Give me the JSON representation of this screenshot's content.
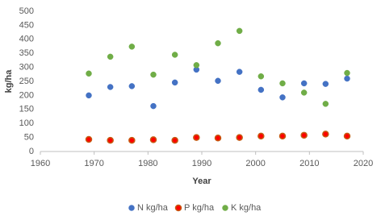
{
  "chart_data": {
    "type": "scatter",
    "xlabel": "Year",
    "ylabel": "kg/ha",
    "xlim": [
      1960,
      2020
    ],
    "xticks": [
      1960,
      1970,
      1980,
      1990,
      2000,
      2010,
      2020
    ],
    "ylim": [
      0,
      500
    ],
    "yticks": [
      0,
      50,
      100,
      150,
      200,
      250,
      300,
      350,
      400,
      450,
      500
    ],
    "grid": false,
    "legend": "bottom",
    "x": [
      1969,
      1973,
      1977,
      1981,
      1985,
      1989,
      1993,
      1997,
      2001,
      2005,
      2009,
      2013,
      2017
    ],
    "series": [
      {
        "name": "N kg/ha",
        "color": "#4472c4",
        "values": [
          200,
          230,
          233,
          162,
          246,
          292,
          252,
          284,
          220,
          193,
          243,
          241,
          260
        ]
      },
      {
        "name": "P kg/ha",
        "color": "#ff0000",
        "edgecolor": "#c55a11",
        "values": [
          43,
          40,
          40,
          42,
          40,
          50,
          48,
          50,
          55,
          55,
          58,
          62,
          55
        ]
      },
      {
        "name": "K kg/ha",
        "color": "#70ad47",
        "values": [
          278,
          338,
          374,
          274,
          345,
          308,
          386,
          430,
          268,
          243,
          210,
          170,
          280
        ]
      }
    ]
  }
}
